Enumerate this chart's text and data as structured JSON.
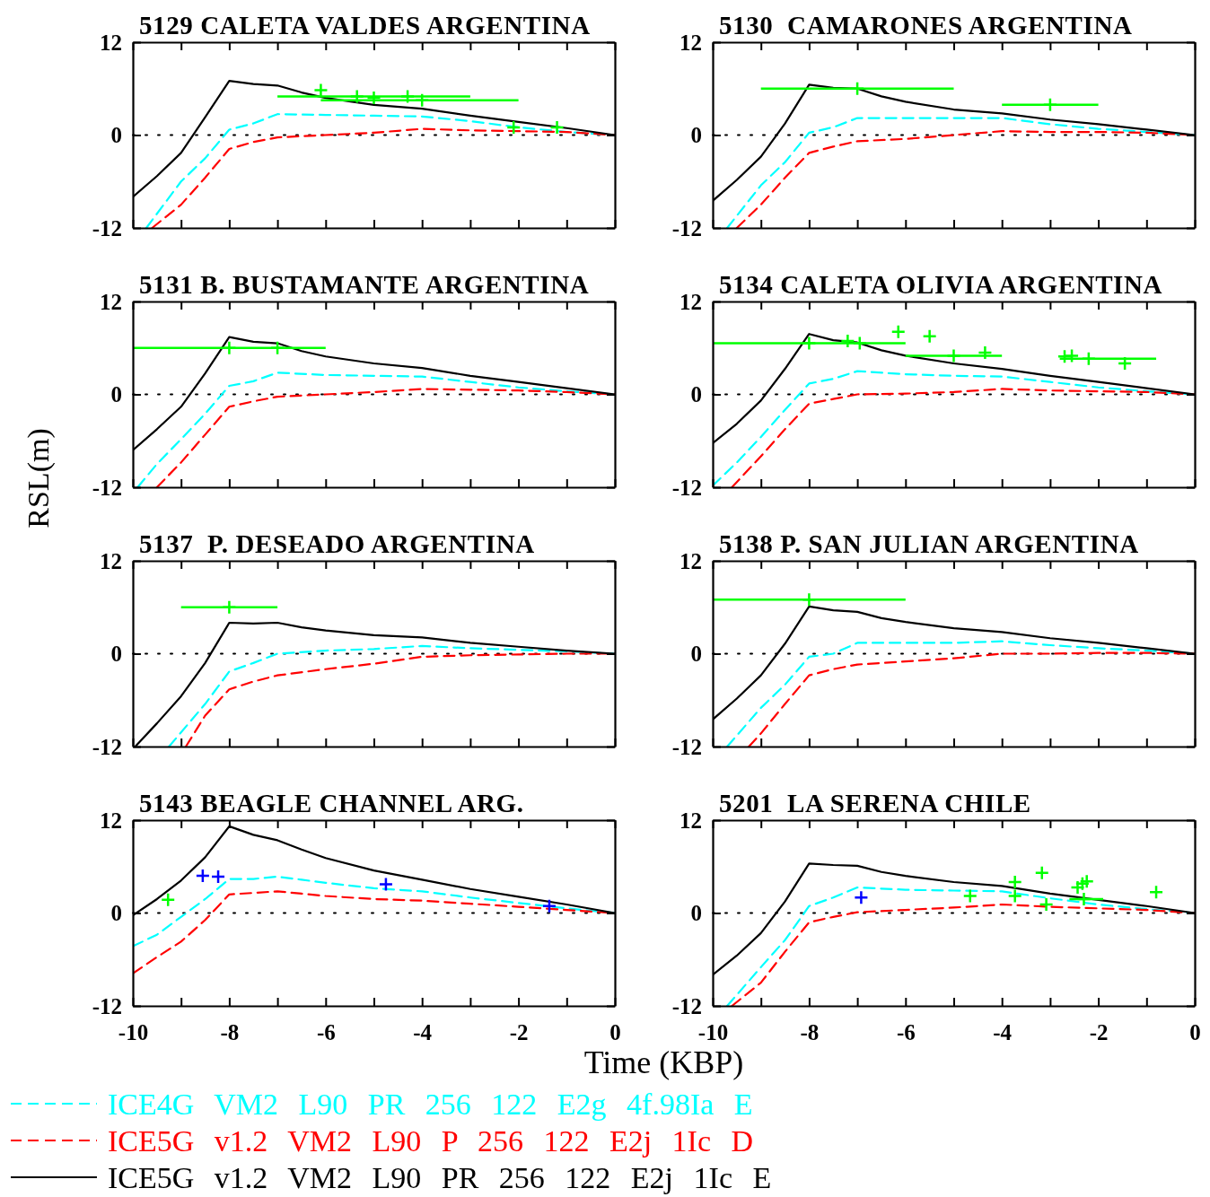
{
  "chart_data": [
    {
      "type": "line",
      "title": "5129 CALETA VALDES ARGENTINA",
      "tick_labels": "y",
      "xlim": [
        -10,
        0
      ],
      "ylim": [
        -12,
        12
      ],
      "xticks": [
        -10,
        {
          "value": -9,
          "label": null
        },
        -8,
        {
          "value": -7,
          "label": null
        },
        -6,
        {
          "value": -5,
          "label": null
        },
        -4,
        {
          "value": -3,
          "label": null
        },
        -2,
        {
          "value": -1,
          "label": null
        },
        0
      ],
      "yticks": [
        -12,
        0,
        12
      ],
      "ref_lines": [
        {
          "axis": "y",
          "value": 0,
          "color": "#000000",
          "line_style": "dotted"
        }
      ],
      "series": [
        {
          "color": "#00ffff",
          "line_style": "dashed",
          "x": [
            -9.72,
            -9,
            -8.5,
            -8,
            -7.5,
            -7,
            -6,
            -5,
            -4,
            -3,
            -2,
            -1,
            0
          ],
          "values": [
            -12,
            -6,
            -3,
            0.7,
            1.5,
            2.7,
            2.6,
            2.5,
            2.4,
            1.8,
            1.0,
            0.4,
            0
          ]
        },
        {
          "color": "#ff0000",
          "line_style": "dashed",
          "x": [
            -9.6,
            -9,
            -8.5,
            -8,
            -7.5,
            -7,
            -6,
            -5,
            -4,
            -3,
            -2,
            -1,
            0
          ],
          "values": [
            -12,
            -9,
            -5.5,
            -1.8,
            -0.9,
            -0.3,
            0,
            0.3,
            0.8,
            0.6,
            0.5,
            0.4,
            0
          ]
        },
        {
          "color": "#000000",
          "line_style": "solid",
          "x": [
            -10,
            -9.5,
            -9,
            -8.5,
            -8,
            -7.5,
            -7,
            -6.5,
            -6,
            -5,
            -4,
            -3,
            -2,
            -1,
            0
          ],
          "values": [
            -8,
            -5.3,
            -2.3,
            2.3,
            7,
            6.6,
            6.4,
            5.5,
            4.8,
            3.9,
            3.4,
            2.5,
            1.7,
            0.9,
            0
          ]
        },
        {
          "type": "scatter",
          "marker": "cross",
          "color": "#00ff00",
          "x": [
            -6.1,
            -5.35,
            -5.0,
            -4.3,
            -4.0,
            -2.1,
            -1.2
          ],
          "values": [
            5.8,
            5.0,
            4.8,
            5.0,
            4.5,
            1.0,
            1.0
          ],
          "xerrors": [
            null,
            [
              -7.0,
              -3.0
            ],
            null,
            null,
            [
              -6.1,
              -2.0
            ],
            null,
            null
          ]
        }
      ]
    },
    {
      "type": "line",
      "title": "5130  CAMARONES ARGENTINA",
      "tick_labels": "y",
      "xlim": [
        -10,
        0
      ],
      "ylim": [
        -12,
        12
      ],
      "xticks": [
        -10,
        {
          "value": -9,
          "label": null
        },
        -8,
        {
          "value": -7,
          "label": null
        },
        -6,
        {
          "value": -5,
          "label": null
        },
        -4,
        {
          "value": -3,
          "label": null
        },
        -2,
        {
          "value": -1,
          "label": null
        },
        0
      ],
      "yticks": [
        -12,
        0,
        12
      ],
      "ref_lines": [
        {
          "axis": "y",
          "value": 0,
          "color": "#000000",
          "line_style": "dotted"
        }
      ],
      "series": [
        {
          "color": "#00ffff",
          "line_style": "dashed",
          "x": [
            -9.7,
            -9,
            -8.5,
            -8,
            -7.5,
            -7,
            -6,
            -5,
            -4,
            -3,
            -2,
            -1,
            0
          ],
          "values": [
            -12,
            -6.5,
            -3.5,
            0.3,
            1.0,
            2.2,
            2.2,
            2.2,
            2.2,
            1.4,
            0.8,
            0.4,
            0
          ]
        },
        {
          "color": "#ff0000",
          "line_style": "dashed",
          "x": [
            -9.5,
            -9,
            -8.5,
            -8,
            -7.5,
            -7,
            -6,
            -5,
            -4,
            -3,
            -2,
            -1,
            0
          ],
          "values": [
            -12,
            -9,
            -5.5,
            -2.3,
            -1.5,
            -0.8,
            -0.5,
            0.0,
            0.5,
            0.4,
            0.4,
            0.3,
            0
          ]
        },
        {
          "color": "#000000",
          "line_style": "solid",
          "x": [
            -10,
            -9.5,
            -9,
            -8.5,
            -8,
            -7.5,
            -7,
            -6.5,
            -6,
            -5,
            -4,
            -3,
            -2,
            -1,
            0
          ],
          "values": [
            -8.5,
            -5.8,
            -2.8,
            1.5,
            6.5,
            6.1,
            6.0,
            5.0,
            4.3,
            3.3,
            2.8,
            2.0,
            1.4,
            0.7,
            0
          ]
        },
        {
          "type": "scatter",
          "marker": "cross",
          "color": "#00ff00",
          "x": [
            -7.0,
            -3.0
          ],
          "values": [
            6.0,
            3.9
          ],
          "xerrors": [
            [
              -9.0,
              -5.0
            ],
            [
              -4.0,
              -2.0
            ]
          ]
        }
      ]
    },
    {
      "type": "line",
      "title": "5131 B. BUSTAMANTE ARGENTINA",
      "ylabel": "RSL(m)",
      "tick_labels": "y",
      "xlim": [
        -10,
        0
      ],
      "ylim": [
        -12,
        12
      ],
      "xticks": [
        -10,
        {
          "value": -9,
          "label": null
        },
        -8,
        {
          "value": -7,
          "label": null
        },
        -6,
        {
          "value": -5,
          "label": null
        },
        -4,
        {
          "value": -3,
          "label": null
        },
        -2,
        {
          "value": -1,
          "label": null
        },
        0
      ],
      "yticks": [
        -12,
        0,
        12
      ],
      "ref_lines": [
        {
          "axis": "y",
          "value": 0,
          "color": "#000000",
          "line_style": "dotted"
        }
      ],
      "series": [
        {
          "color": "#00ffff",
          "line_style": "dashed",
          "x": [
            -9.9,
            -9.5,
            -9,
            -8.5,
            -8,
            -7.5,
            -7,
            -6,
            -5,
            -4,
            -3,
            -2,
            -1,
            0
          ],
          "values": [
            -12,
            -9,
            -5.8,
            -2.5,
            1.1,
            1.7,
            2.8,
            2.5,
            2.4,
            2.3,
            1.6,
            0.9,
            0.4,
            0
          ]
        },
        {
          "color": "#ff0000",
          "line_style": "dashed",
          "x": [
            -9.5,
            -9,
            -8.5,
            -8,
            -7.5,
            -7,
            -6,
            -5,
            -4,
            -3,
            -2,
            -1,
            0
          ],
          "values": [
            -12,
            -8.8,
            -5.2,
            -1.6,
            -0.9,
            -0.3,
            0.0,
            0.3,
            0.7,
            0.6,
            0.5,
            0.3,
            0
          ]
        },
        {
          "color": "#000000",
          "line_style": "solid",
          "x": [
            -10,
            -9.5,
            -9,
            -8.5,
            -8,
            -7.5,
            -7,
            -6.5,
            -6,
            -5,
            -4,
            -3,
            -2,
            -1,
            0
          ],
          "values": [
            -7.2,
            -4.5,
            -1.6,
            2.7,
            7.4,
            6.8,
            6.6,
            5.6,
            4.9,
            4.0,
            3.4,
            2.4,
            1.6,
            0.8,
            0
          ]
        },
        {
          "type": "scatter",
          "marker": "cross",
          "color": "#00ff00",
          "x": [
            -8.0,
            -7.0
          ],
          "values": [
            6.0,
            6.0
          ],
          "xerrors": [
            [
              -10,
              -6.0
            ],
            null
          ]
        }
      ]
    },
    {
      "type": "line",
      "title": "5134 CALETA OLIVIA ARGENTINA",
      "tick_labels": "y",
      "xlim": [
        -10,
        0
      ],
      "ylim": [
        -12,
        12
      ],
      "xticks": [
        -10,
        {
          "value": -9,
          "label": null
        },
        -8,
        {
          "value": -7,
          "label": null
        },
        -6,
        {
          "value": -5,
          "label": null
        },
        -4,
        {
          "value": -3,
          "label": null
        },
        -2,
        {
          "value": -1,
          "label": null
        },
        0
      ],
      "yticks": [
        -12,
        0,
        12
      ],
      "ref_lines": [
        {
          "axis": "y",
          "value": 0,
          "color": "#000000",
          "line_style": "dotted"
        }
      ],
      "series": [
        {
          "color": "#00ffff",
          "line_style": "dashed",
          "x": [
            -10,
            -9.5,
            -9,
            -8.5,
            -8,
            -7.5,
            -7,
            -6,
            -5,
            -4,
            -3,
            -2,
            -1,
            0
          ],
          "values": [
            -11.8,
            -8.8,
            -5.5,
            -2,
            1.4,
            2,
            3.0,
            2.6,
            2.4,
            2.3,
            1.6,
            0.9,
            0.4,
            0
          ]
        },
        {
          "color": "#ff0000",
          "line_style": "dashed",
          "x": [
            -9.6,
            -9,
            -8.5,
            -8,
            -7.5,
            -7,
            -6,
            -5,
            -4,
            -3,
            -2,
            -1,
            0
          ],
          "values": [
            -12,
            -8,
            -4.5,
            -1.2,
            -0.6,
            0.0,
            0.1,
            0.3,
            0.7,
            0.5,
            0.4,
            0.3,
            0
          ]
        },
        {
          "color": "#000000",
          "line_style": "solid",
          "x": [
            -10,
            -9.5,
            -9,
            -8.5,
            -8,
            -7.5,
            -7,
            -6.5,
            -6,
            -5,
            -4,
            -3,
            -2,
            -1,
            0
          ],
          "values": [
            -6.3,
            -3.8,
            -0.8,
            3.3,
            7.8,
            7.0,
            6.7,
            5.7,
            5.0,
            4.0,
            3.3,
            2.4,
            1.6,
            0.8,
            0
          ]
        },
        {
          "type": "scatter",
          "marker": "cross",
          "color": "#00ff00",
          "x": [
            -8.0,
            -7.2,
            -6.95,
            -6.15,
            -5.5,
            -5.0,
            -4.35,
            -2.7,
            -2.55,
            -2.2,
            -1.45
          ],
          "values": [
            6.6,
            6.9,
            6.6,
            8.1,
            7.5,
            5.0,
            5.4,
            4.9,
            5.0,
            4.6,
            4.0
          ],
          "xerrors": [
            [
              -10,
              -6.0
            ],
            null,
            null,
            null,
            null,
            [
              -6.0,
              -4.0
            ],
            null,
            null,
            null,
            [
              -2.8,
              -0.8
            ],
            null
          ]
        }
      ]
    },
    {
      "type": "line",
      "title": "5137  P. DESEADO ARGENTINA",
      "tick_labels": "y",
      "xlim": [
        -10,
        0
      ],
      "ylim": [
        -12,
        12
      ],
      "xticks": [
        -10,
        {
          "value": -9,
          "label": null
        },
        -8,
        {
          "value": -7,
          "label": null
        },
        -6,
        {
          "value": -5,
          "label": null
        },
        -4,
        {
          "value": -3,
          "label": null
        },
        -2,
        {
          "value": -1,
          "label": null
        },
        0
      ],
      "yticks": [
        -12,
        0,
        12
      ],
      "ref_lines": [
        {
          "axis": "y",
          "value": 0,
          "color": "#000000",
          "line_style": "dotted"
        }
      ],
      "series": [
        {
          "color": "#00ffff",
          "line_style": "dashed",
          "x": [
            -9.25,
            -8.5,
            -8,
            -7.5,
            -7,
            -6,
            -5,
            -4,
            -3,
            -2,
            -1,
            0
          ],
          "values": [
            -12,
            -6.5,
            -2.3,
            -1.2,
            0.0,
            0.4,
            0.6,
            1.0,
            0.7,
            0.5,
            0.3,
            0
          ]
        },
        {
          "color": "#ff0000",
          "line_style": "dashed",
          "x": [
            -8.9,
            -8.5,
            -8,
            -7.5,
            -7,
            -6,
            -5,
            -4,
            -3,
            -2,
            -1,
            0
          ],
          "values": [
            -12,
            -8,
            -4.6,
            -3.6,
            -2.8,
            -2.0,
            -1.3,
            -0.4,
            -0.2,
            -0.1,
            0.0,
            0
          ]
        },
        {
          "color": "#000000",
          "line_style": "solid",
          "x": [
            -9.95,
            -9.5,
            -9,
            -8.5,
            -8,
            -7.5,
            -7,
            -6.5,
            -6,
            -5,
            -4,
            -3,
            -2,
            -1,
            0
          ],
          "values": [
            -12,
            -9,
            -5.5,
            -1.2,
            4.0,
            3.9,
            4.0,
            3.4,
            3.0,
            2.4,
            2.1,
            1.4,
            0.9,
            0.4,
            0
          ]
        },
        {
          "type": "scatter",
          "marker": "cross",
          "color": "#00ff00",
          "x": [
            -8.0
          ],
          "values": [
            6.0
          ],
          "xerrors": [
            [
              -9.0,
              -7.0
            ]
          ]
        }
      ]
    },
    {
      "type": "line",
      "title": "5138 P. SAN JULIAN ARGENTINA",
      "tick_labels": "y",
      "xlim": [
        -10,
        0
      ],
      "ylim": [
        -12,
        12
      ],
      "xticks": [
        -10,
        {
          "value": -9,
          "label": null
        },
        -8,
        {
          "value": -7,
          "label": null
        },
        -6,
        {
          "value": -5,
          "label": null
        },
        -4,
        {
          "value": -3,
          "label": null
        },
        -2,
        {
          "value": -1,
          "label": null
        },
        0
      ],
      "yticks": [
        -12,
        0,
        12
      ],
      "ref_lines": [
        {
          "axis": "y",
          "value": 0,
          "color": "#000000",
          "line_style": "dotted"
        }
      ],
      "series": [
        {
          "color": "#00ffff",
          "line_style": "dashed",
          "x": [
            -9.7,
            -9,
            -8.5,
            -8,
            -7.5,
            -7,
            -6,
            -5,
            -4,
            -3,
            -2,
            -1,
            0
          ],
          "values": [
            -12,
            -7,
            -4,
            -0.4,
            0.0,
            1.4,
            1.4,
            1.4,
            1.6,
            1.1,
            0.7,
            0.4,
            0
          ]
        },
        {
          "color": "#ff0000",
          "line_style": "dashed",
          "x": [
            -9.25,
            -9,
            -8.5,
            -8,
            -7.5,
            -7,
            -6,
            -5,
            -4,
            -3,
            -2,
            -1,
            0
          ],
          "values": [
            -12,
            -10.3,
            -6.5,
            -2.8,
            -2.0,
            -1.4,
            -1.0,
            -0.6,
            0.0,
            0.0,
            0.1,
            0.1,
            0
          ]
        },
        {
          "color": "#000000",
          "line_style": "solid",
          "x": [
            -10,
            -9.5,
            -9,
            -8.5,
            -8,
            -7.5,
            -7,
            -6.5,
            -6,
            -5,
            -4,
            -3,
            -2,
            -1,
            0
          ],
          "values": [
            -8.5,
            -5.8,
            -2.8,
            1.3,
            6.1,
            5.6,
            5.4,
            4.6,
            4.1,
            3.3,
            2.8,
            2.0,
            1.4,
            0.7,
            0
          ]
        },
        {
          "type": "scatter",
          "marker": "cross",
          "color": "#00ff00",
          "x": [
            -8.0
          ],
          "values": [
            7.0
          ],
          "xerrors": [
            [
              -10,
              -6.0
            ]
          ]
        }
      ]
    },
    {
      "type": "line",
      "title": "5143 BEAGLE CHANNEL ARG.",
      "xlabel": "Time (KBP)",
      "legend": "bottom",
      "xlim": [
        -10,
        0
      ],
      "ylim": [
        -12,
        12
      ],
      "xticks": [
        -10,
        {
          "value": -9,
          "label": null
        },
        -8,
        {
          "value": -7,
          "label": null
        },
        -6,
        {
          "value": -5,
          "label": null
        },
        -4,
        {
          "value": -3,
          "label": null
        },
        -2,
        {
          "value": -1,
          "label": null
        },
        0
      ],
      "yticks": [
        -12,
        0,
        12
      ],
      "ref_lines": [
        {
          "axis": "y",
          "value": 0,
          "color": "#000000",
          "line_style": "dotted"
        }
      ],
      "series": [
        {
          "name": "ICE4G VM2 L90 PR 256 122 E2g 4f.98Ia E",
          "color": "#00ffff",
          "line_style": "dashed",
          "x": [
            -10,
            -9.5,
            -9,
            -8.5,
            -8,
            -7.5,
            -7,
            -6.5,
            -6,
            -5,
            -4,
            -3,
            -2,
            -1,
            0
          ],
          "values": [
            -4.3,
            -2.8,
            -0.5,
            1.8,
            4.4,
            4.4,
            4.7,
            4.3,
            3.9,
            3.2,
            2.8,
            2.0,
            1.3,
            0.6,
            0
          ]
        },
        {
          "name": "ICE5G v1.2 VM2 L90 P 256 122 E2j 1Ic D",
          "color": "#ff0000",
          "line_style": "dashed",
          "x": [
            -10,
            -9.5,
            -9,
            -8.5,
            -8,
            -7.5,
            -7,
            -6.5,
            -6,
            -5,
            -4,
            -3,
            -2,
            -1,
            0
          ],
          "values": [
            -7.8,
            -5.7,
            -3.7,
            -0.9,
            2.4,
            2.6,
            2.8,
            2.5,
            2.2,
            1.8,
            1.6,
            1.2,
            0.8,
            0.4,
            0
          ]
        },
        {
          "name": "ICE5G v1.2 VM2 L90 PR 256 122 E2j 1Ic E",
          "color": "#000000",
          "line_style": "solid",
          "x": [
            -10,
            -9.5,
            -9,
            -8.5,
            -8,
            -7.5,
            -7,
            -6.5,
            -6,
            -5,
            -4,
            -3,
            -2,
            -1,
            0
          ],
          "values": [
            -0.3,
            1.8,
            4.2,
            7.2,
            11.2,
            10.1,
            9.4,
            8.2,
            7.1,
            5.5,
            4.3,
            3.1,
            2.1,
            1.1,
            0
          ]
        },
        {
          "type": "scatter",
          "marker": "cross",
          "color": "#00ff00",
          "x": [
            -9.27
          ],
          "values": [
            1.7
          ]
        },
        {
          "type": "scatter",
          "marker": "cross",
          "color": "#0000ff",
          "x": [
            -8.55,
            -8.23,
            -4.75,
            -1.36
          ],
          "values": [
            4.8,
            4.7,
            3.7,
            0.9
          ]
        }
      ]
    },
    {
      "type": "line",
      "title": "5201  LA SERENA CHILE",
      "xlim": [
        -10,
        0
      ],
      "ylim": [
        -12,
        12
      ],
      "xticks": [
        -10,
        {
          "value": -9,
          "label": null
        },
        -8,
        {
          "value": -7,
          "label": null
        },
        -6,
        {
          "value": -5,
          "label": null
        },
        -4,
        {
          "value": -3,
          "label": null
        },
        -2,
        {
          "value": -1,
          "label": null
        },
        0
      ],
      "yticks": [
        -12,
        0,
        12
      ],
      "ref_lines": [
        {
          "axis": "y",
          "value": 0,
          "color": "#000000",
          "line_style": "dotted"
        }
      ],
      "series": [
        {
          "color": "#00ffff",
          "line_style": "dashed",
          "x": [
            -9.7,
            -9,
            -8.5,
            -8,
            -7.5,
            -7,
            -6,
            -5,
            -4,
            -3,
            -2,
            -1,
            0
          ],
          "values": [
            -12,
            -7,
            -3.5,
            0.9,
            2.0,
            3.3,
            3.0,
            2.9,
            2.8,
            1.9,
            1.1,
            0.5,
            0
          ]
        },
        {
          "color": "#ff0000",
          "line_style": "dashed",
          "x": [
            -9.6,
            -9,
            -8.5,
            -8,
            -7.5,
            -7,
            -6,
            -5,
            -4,
            -3,
            -2,
            -1,
            0
          ],
          "values": [
            -12,
            -9,
            -5,
            -1.2,
            -0.5,
            0.1,
            0.4,
            0.7,
            1.1,
            0.8,
            0.6,
            0.4,
            0
          ]
        },
        {
          "color": "#000000",
          "line_style": "solid",
          "x": [
            -10,
            -9.5,
            -9,
            -8.5,
            -8,
            -7.5,
            -7,
            -6.5,
            -6,
            -5,
            -4,
            -3,
            -2,
            -1,
            0
          ],
          "values": [
            -8.0,
            -5.5,
            -2.6,
            1.5,
            6.4,
            6.2,
            6.1,
            5.3,
            4.8,
            4.0,
            3.5,
            2.5,
            1.7,
            0.9,
            0
          ]
        },
        {
          "type": "scatter",
          "marker": "cross",
          "color": "#00ff00",
          "x": [
            -4.66,
            -3.73,
            -3.73,
            -3.17,
            -3.08,
            -2.43,
            -2.33,
            -2.24,
            -2.3,
            -0.8
          ],
          "values": [
            2.2,
            4.0,
            2.2,
            5.2,
            1.1,
            3.3,
            3.8,
            4.1,
            1.8,
            2.7
          ],
          "xerrors": [
            null,
            null,
            null,
            null,
            null,
            null,
            null,
            null,
            [
              -2.6,
              -1.9
            ],
            null
          ]
        },
        {
          "type": "scatter",
          "marker": "cross",
          "color": "#0000ff",
          "x": [
            -6.92
          ],
          "values": [
            2.0
          ]
        }
      ]
    }
  ]
}
